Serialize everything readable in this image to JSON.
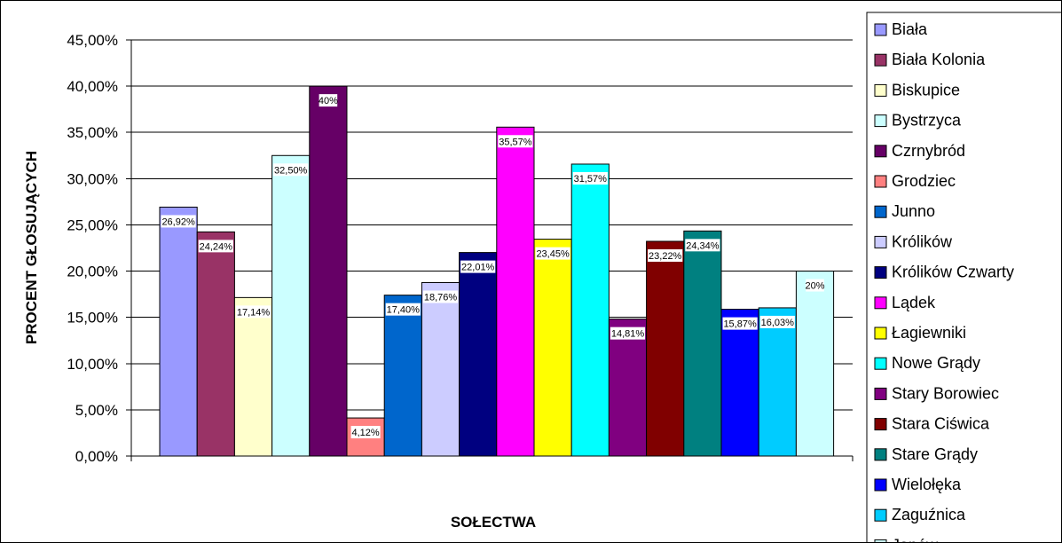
{
  "chart_data": {
    "type": "bar",
    "title": "",
    "xlabel": "SOŁECTWA",
    "ylabel": "PROCENT GŁOSUJĄCYCH",
    "ylim": [
      0,
      45
    ],
    "y_ticks": [
      "0,00%",
      "5,00%",
      "10,00%",
      "15,00%",
      "20,00%",
      "25,00%",
      "30,00%",
      "35,00%",
      "40,00%",
      "45,00%"
    ],
    "grid": "horizontal",
    "legend_position": "right",
    "categories": [
      "Biała",
      "Biała Kolonia",
      "Biskupice",
      "Bystrzyca",
      "Czrnybród",
      "Grodziec",
      "Junno",
      "Królików",
      "Królików Czwarty",
      "Lądek",
      "Łagiewniki",
      "Nowe Grądy",
      "Stary Borowiec",
      "Stara Ciświca",
      "Stare Grądy",
      "Wielołęka",
      "Zaguźnica",
      "Janów"
    ],
    "values": [
      26.92,
      24.24,
      17.14,
      32.5,
      40,
      4.12,
      17.4,
      18.76,
      22.01,
      35.57,
      23.45,
      31.57,
      14.81,
      23.22,
      24.34,
      15.87,
      16.03,
      20
    ],
    "value_labels": [
      "26,92%",
      "24,24%",
      "17,14%",
      "32,50%",
      "40%",
      "4,12%",
      "17,40%",
      "18,76%",
      "22,01%",
      "35,57%",
      "23,45%",
      "31,57%",
      "14,81%",
      "23,22%",
      "24,34%",
      "15,87%",
      "16,03%",
      "20%"
    ],
    "colors": [
      "#9999FF",
      "#993366",
      "#FFFFCC",
      "#CCFFFF",
      "#660066",
      "#FF8080",
      "#0066CC",
      "#CCCCFF",
      "#000080",
      "#FF00FF",
      "#FFFF00",
      "#00FFFF",
      "#800080",
      "#800000",
      "#008080",
      "#0000FF",
      "#00CCFF",
      "#CCFFFF"
    ]
  }
}
